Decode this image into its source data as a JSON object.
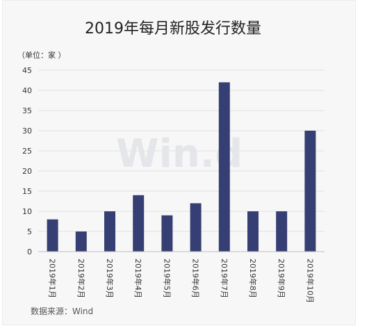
{
  "chart_data": {
    "type": "bar",
    "title": "2019年每月新股发行数量",
    "unit_label": "（单位：家 ）",
    "source_label": "数据来源：Wind",
    "watermark": "Win.d",
    "categories": [
      "2019年1月",
      "2019年2月",
      "2019年3月",
      "2019年4月",
      "2019年5月",
      "2019年6月",
      "2019年7月",
      "2019年8月",
      "2019年9月",
      "2019年10月"
    ],
    "values": [
      8,
      5,
      10,
      14,
      9,
      12,
      42,
      10,
      10,
      30
    ],
    "ylim": [
      0,
      45
    ],
    "yticks": [
      0,
      5,
      10,
      15,
      20,
      25,
      30,
      35,
      40,
      45
    ],
    "grid": true,
    "legend": "none",
    "colors": {
      "bar": "#363f73",
      "grid": "#e2e2e2",
      "axis": "#bdbdbd"
    }
  }
}
